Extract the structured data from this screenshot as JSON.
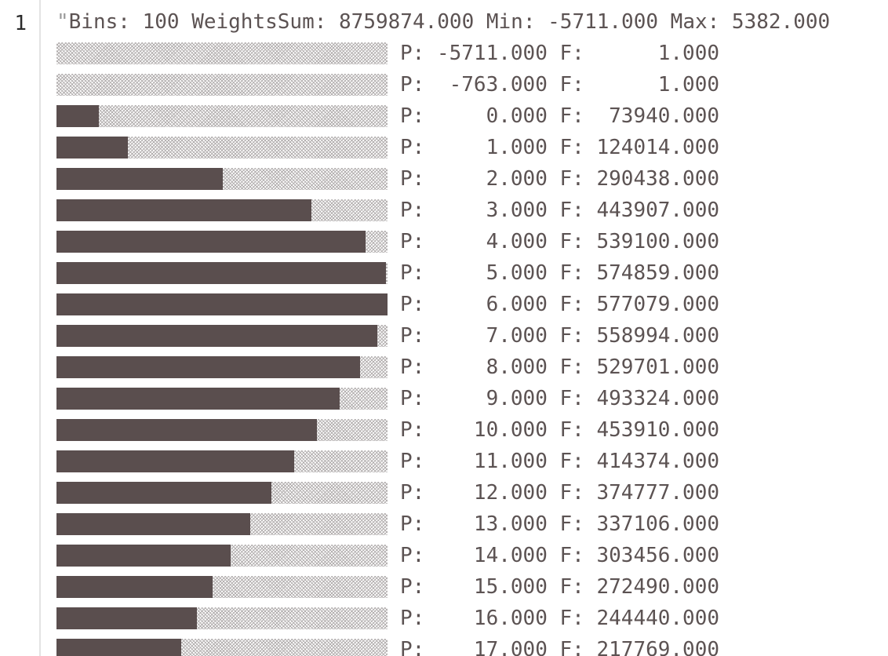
{
  "gutter": {
    "line_number": "1"
  },
  "header": {
    "quote": "\"",
    "text": "Bins: 100 WeightsSum: 8759874.000 Min: -5711.000 Max: 5382.000"
  },
  "histogram": {
    "max_frequency": 577079,
    "bins": [
      {
        "position": "-5711.000",
        "frequency": "1.000",
        "value": 1
      },
      {
        "position": "-763.000",
        "frequency": "1.000",
        "value": 1
      },
      {
        "position": "0.000",
        "frequency": "73940.000",
        "value": 73940
      },
      {
        "position": "1.000",
        "frequency": "124014.000",
        "value": 124014
      },
      {
        "position": "2.000",
        "frequency": "290438.000",
        "value": 290438
      },
      {
        "position": "3.000",
        "frequency": "443907.000",
        "value": 443907
      },
      {
        "position": "4.000",
        "frequency": "539100.000",
        "value": 539100
      },
      {
        "position": "5.000",
        "frequency": "574859.000",
        "value": 574859
      },
      {
        "position": "6.000",
        "frequency": "577079.000",
        "value": 577079
      },
      {
        "position": "7.000",
        "frequency": "558994.000",
        "value": 558994
      },
      {
        "position": "8.000",
        "frequency": "529701.000",
        "value": 529701
      },
      {
        "position": "9.000",
        "frequency": "493324.000",
        "value": 493324
      },
      {
        "position": "10.000",
        "frequency": "453910.000",
        "value": 453910
      },
      {
        "position": "11.000",
        "frequency": "414374.000",
        "value": 414374
      },
      {
        "position": "12.000",
        "frequency": "374777.000",
        "value": 374777
      },
      {
        "position": "13.000",
        "frequency": "337106.000",
        "value": 337106
      },
      {
        "position": "14.000",
        "frequency": "303456.000",
        "value": 303456
      },
      {
        "position": "15.000",
        "frequency": "272490.000",
        "value": 272490
      },
      {
        "position": "16.000",
        "frequency": "244440.000",
        "value": 244440
      },
      {
        "position": "17.000",
        "frequency": "217769.000",
        "value": 217769
      }
    ]
  },
  "colors": {
    "bar_fill": "#5a4e4e",
    "bar_track_dots": "#b4b0b0",
    "text": "#5c5353",
    "gutter_border": "#e3e3e3"
  }
}
